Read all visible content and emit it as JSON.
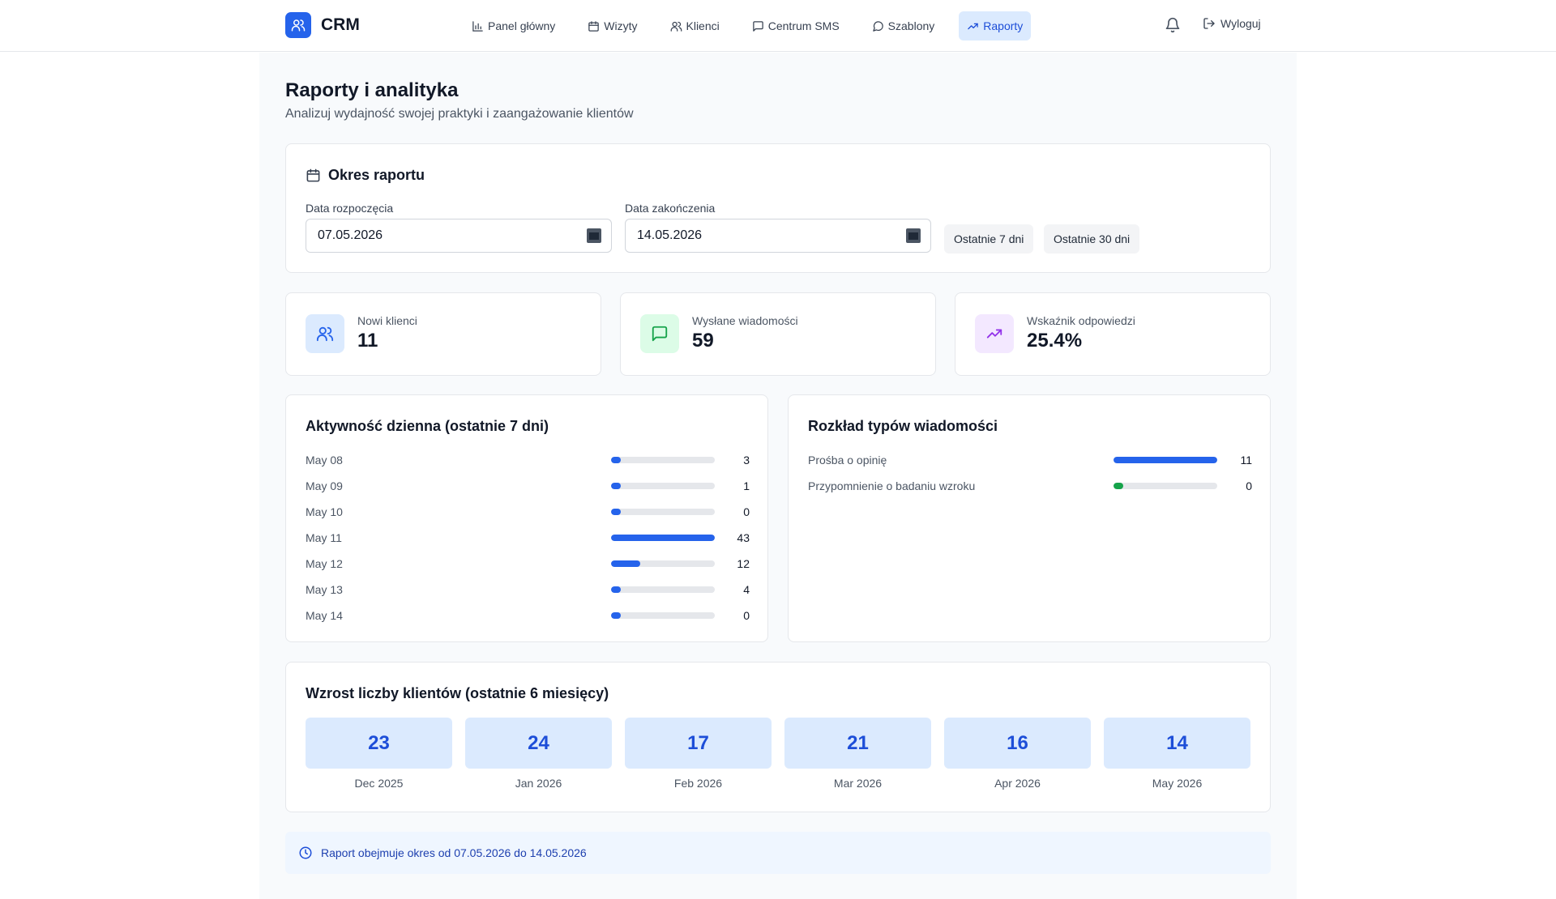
{
  "app": {
    "name": "CRM",
    "logo_icon": "users-icon",
    "accent": "#2563eb"
  },
  "nav": {
    "items": [
      {
        "label": "Panel główny",
        "icon": "bar-chart-icon",
        "active": false
      },
      {
        "label": "Wizyty",
        "icon": "calendar-icon",
        "active": false
      },
      {
        "label": "Klienci",
        "icon": "users-icon",
        "active": false
      },
      {
        "label": "Centrum SMS",
        "icon": "message-square-icon",
        "active": false
      },
      {
        "label": "Szablony",
        "icon": "message-circle-icon",
        "active": false
      },
      {
        "label": "Raporty",
        "icon": "trending-up-icon",
        "active": true
      }
    ],
    "notifications_icon": "bell-icon",
    "logout_label": "Wyloguj"
  },
  "page": {
    "title": "Raporty i analityka",
    "subtitle": "Analizuj wydajność swojej praktyki i zaangażowanie klientów"
  },
  "period": {
    "title": "Okres raportu",
    "start_label": "Data rozpoczęcia",
    "start_value": "07.05.2026",
    "end_label": "Data zakończenia",
    "end_value": "14.05.2026",
    "quick_7": "Ostatnie 7 dni",
    "quick_30": "Ostatnie 30 dni"
  },
  "stats": [
    {
      "label": "Nowi klienci",
      "value": "11",
      "icon": "users-icon",
      "icon_bg": "#dbeafe",
      "icon_color": "#2563eb"
    },
    {
      "label": "Wysłane wiadomości",
      "value": "59",
      "icon": "message-square-icon",
      "icon_bg": "#dcfce7",
      "icon_color": "#16a34a"
    },
    {
      "label": "Wskaźnik odpowiedzi",
      "value": "25.4%",
      "icon": "trending-up-icon",
      "icon_bg": "#f3e8ff",
      "icon_color": "#9333ea"
    }
  ],
  "activity": {
    "title": "Aktywność dzienna (ostatnie 7 dni)",
    "bar_color": "#2563eb",
    "rows": [
      {
        "label": "May 08",
        "value": 3,
        "fill": 0.07
      },
      {
        "label": "May 09",
        "value": 1,
        "fill": 0.02
      },
      {
        "label": "May 10",
        "value": 0,
        "fill": 0
      },
      {
        "label": "May 11",
        "value": 43,
        "fill": 1.0
      },
      {
        "label": "May 12",
        "value": 12,
        "fill": 0.28
      },
      {
        "label": "May 13",
        "value": 4,
        "fill": 0.09
      },
      {
        "label": "May 14",
        "value": 0,
        "fill": 0
      }
    ]
  },
  "types": {
    "title": "Rozkład typów wiadomości",
    "rows": [
      {
        "label": "Prośba o opinię",
        "value": 11,
        "fill": 1.0,
        "color": "#2563eb"
      },
      {
        "label": "Przypomnienie o badaniu wzroku",
        "value": 0,
        "fill": 0,
        "color": "#16a34a"
      }
    ]
  },
  "growth": {
    "title": "Wzrost liczby klientów (ostatnie 6 miesięcy)",
    "months": [
      {
        "label": "Dec 2025",
        "value": "23"
      },
      {
        "label": "Jan 2026",
        "value": "24"
      },
      {
        "label": "Feb 2026",
        "value": "17"
      },
      {
        "label": "Mar 2026",
        "value": "21"
      },
      {
        "label": "Apr 2026",
        "value": "16"
      },
      {
        "label": "May 2026",
        "value": "14"
      }
    ]
  },
  "footer": {
    "icon": "clock-icon",
    "text": "Raport obejmuje okres od 07.05.2026 do 14.05.2026"
  }
}
